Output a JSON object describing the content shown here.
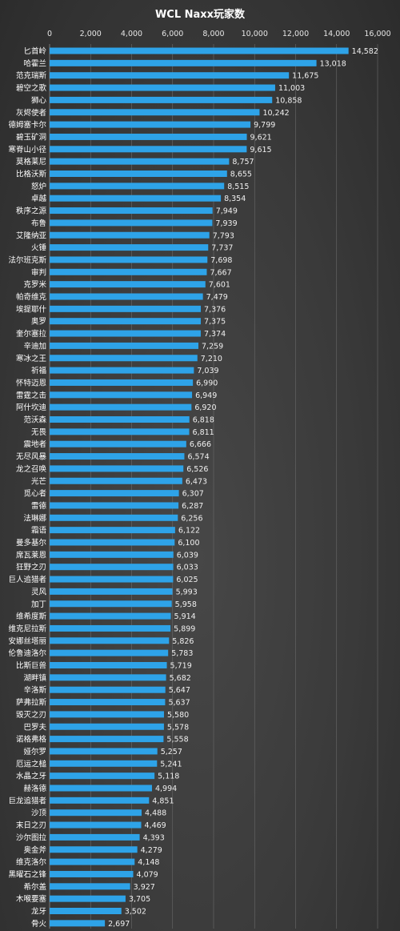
{
  "chart_data": {
    "type": "bar",
    "orientation": "horizontal",
    "title": "WCL  Naxx玩家数",
    "xlim": [
      0,
      16000
    ],
    "xticks": [
      0,
      2000,
      4000,
      6000,
      8000,
      10000,
      12000,
      14000,
      16000
    ],
    "xtick_labels": [
      "0",
      "2,000",
      "4,000",
      "6,000",
      "8,000",
      "10,000",
      "12,000",
      "14,000",
      "16,000"
    ],
    "grid": true,
    "legend": "none",
    "bar_color": "#2ea3e8",
    "categories": [
      "匕首岭",
      "哈霍兰",
      "范克瑞斯",
      "碧空之歌",
      "狮心",
      "灰烬使者",
      "德姆塞卡尔",
      "碧玉矿洞",
      "寒脊山小径",
      "莫格莱尼",
      "比格沃斯",
      "怒炉",
      "卓越",
      "秩序之源",
      "布鲁",
      "艾隆纳亚",
      "火锤",
      "法尔班克斯",
      "审判",
      "克罗米",
      "帕奇维克",
      "埃提耶什",
      "奥罗",
      "奎尔塞拉",
      "辛迪加",
      "寒冰之王",
      "祈福",
      "怀特迈恩",
      "雷霆之击",
      "阿什坎迪",
      "范沃森",
      "无畏",
      "震地者",
      "无尽风暴",
      "龙之召唤",
      "光芒",
      "觅心者",
      "雷德",
      "法琳娜",
      "霜语",
      "曼多基尔",
      "席瓦莱恩",
      "狂野之刃",
      "巨人追猎者",
      "灵风",
      "加丁",
      "维希度斯",
      "维克尼拉斯",
      "安娜丝塔丽",
      "伦鲁迪洛尔",
      "比斯巨兽",
      "湖畔镇",
      "辛洛斯",
      "萨弗拉斯",
      "毁灭之刃",
      "巴罗夫",
      "诺格弗格",
      "娅尔罗",
      "厄运之槌",
      "水晶之牙",
      "赫洛德",
      "巨龙追猎者",
      "沙顶",
      "末日之刃",
      "沙尔图拉",
      "奥金斧",
      "维克洛尔",
      "黑曜石之锋",
      "希尔盖",
      "木喉要塞",
      "龙牙",
      "骨火"
    ],
    "values": [
      14582,
      13018,
      11675,
      11003,
      10858,
      10242,
      9799,
      9621,
      9615,
      8757,
      8655,
      8515,
      8354,
      7949,
      7939,
      7793,
      7737,
      7698,
      7667,
      7601,
      7479,
      7376,
      7375,
      7374,
      7259,
      7210,
      7039,
      6990,
      6949,
      6920,
      6818,
      6811,
      6666,
      6574,
      6526,
      6473,
      6307,
      6287,
      6256,
      6122,
      6100,
      6039,
      6033,
      6025,
      5993,
      5958,
      5914,
      5899,
      5826,
      5783,
      5719,
      5682,
      5647,
      5637,
      5580,
      5578,
      5558,
      5257,
      5241,
      5118,
      4994,
      4851,
      4488,
      4469,
      4393,
      4279,
      4148,
      4079,
      3927,
      3705,
      3502,
      2697
    ],
    "value_labels": [
      "14,582",
      "13,018",
      "11,675",
      "11,003",
      "10,858",
      "10,242",
      "9,799",
      "9,621",
      "9,615",
      "8,757",
      "8,655",
      "8,515",
      "8,354",
      "7,949",
      "7,939",
      "7,793",
      "7,737",
      "7,698",
      "7,667",
      "7,601",
      "7,479",
      "7,376",
      "7,375",
      "7,374",
      "7,259",
      "7,210",
      "7,039",
      "6,990",
      "6,949",
      "6,920",
      "6,818",
      "6,811",
      "6,666",
      "6,574",
      "6,526",
      "6,473",
      "6,307",
      "6,287",
      "6,256",
      "6,122",
      "6,100",
      "6,039",
      "6,033",
      "6,025",
      "5,993",
      "5,958",
      "5,914",
      "5,899",
      "5,826",
      "5,783",
      "5,719",
      "5,682",
      "5,647",
      "5,637",
      "5,580",
      "5,578",
      "5,558",
      "5,257",
      "5,241",
      "5,118",
      "4,994",
      "4,851",
      "4,488",
      "4,469",
      "4,393",
      "4,279",
      "4,148",
      "4,079",
      "3,927",
      "3,705",
      "3,502",
      "2,697"
    ]
  }
}
